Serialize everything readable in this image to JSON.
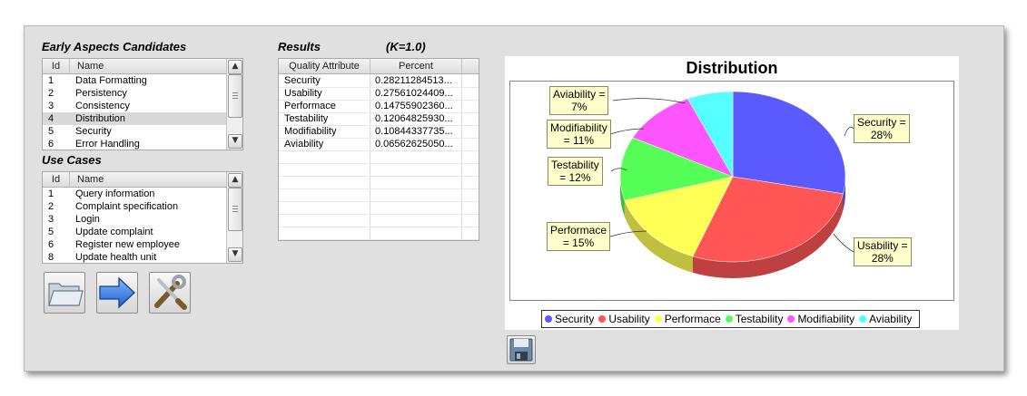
{
  "early_aspects": {
    "title": "Early Aspects Candidates",
    "columns": [
      "Id",
      "Name"
    ],
    "rows": [
      {
        "id": "1",
        "name": "Data Formatting"
      },
      {
        "id": "2",
        "name": "Persistency"
      },
      {
        "id": "3",
        "name": "Consistency"
      },
      {
        "id": "4",
        "name": "Distribution"
      },
      {
        "id": "5",
        "name": "Security"
      },
      {
        "id": "6",
        "name": "Error Handling"
      }
    ],
    "selected_index": 3
  },
  "use_cases": {
    "title": "Use Cases",
    "columns": [
      "Id",
      "Name"
    ],
    "rows": [
      {
        "id": "1",
        "name": "Query information"
      },
      {
        "id": "2",
        "name": "Complaint specification"
      },
      {
        "id": "3",
        "name": "Login"
      },
      {
        "id": "5",
        "name": "Update complaint"
      },
      {
        "id": "6",
        "name": "Register new employee"
      },
      {
        "id": "8",
        "name": "Update health unit"
      }
    ]
  },
  "results": {
    "title": "Results",
    "k_label": "(K=1.0)",
    "columns": [
      "Quality Attribute",
      "Percent"
    ],
    "rows": [
      {
        "attr": "Security",
        "percent": "0.28211284513..."
      },
      {
        "attr": "Usability",
        "percent": "0.27561024409..."
      },
      {
        "attr": "Performace",
        "percent": "0.14755902360..."
      },
      {
        "attr": "Testability",
        "percent": "0.12064825930..."
      },
      {
        "attr": "Modifiability",
        "percent": "0.10844337735..."
      },
      {
        "attr": "Aviability",
        "percent": "0.06562625050..."
      }
    ]
  },
  "toolbar": {
    "open_icon": "folder-open-icon",
    "run_icon": "arrow-right-icon",
    "settings_icon": "tools-icon",
    "save_icon": "floppy-disk-icon"
  },
  "chart_data": {
    "type": "pie",
    "title": "Distribution",
    "slices": [
      {
        "name": "Security",
        "value": 0.28211284513,
        "label": "Security =",
        "pct": "28%",
        "color": "#5a5aff"
      },
      {
        "name": "Usability",
        "value": 0.27561024409,
        "label": "Usability =",
        "pct": "28%",
        "color": "#ff5555"
      },
      {
        "name": "Performace",
        "value": 0.1475590236,
        "label": "Performace",
        "pct": "= 15%",
        "color": "#ffff55"
      },
      {
        "name": "Testability",
        "value": 0.1206482593,
        "label": "Testability",
        "pct": "= 12%",
        "color": "#55ff55"
      },
      {
        "name": "Modifiability",
        "value": 0.10844337735,
        "label": "Modifiability",
        "pct": "= 11%",
        "color": "#ff55ff"
      },
      {
        "name": "Aviability",
        "value": 0.0656262505,
        "label": "Aviability =",
        "pct": "7%",
        "color": "#55ffff"
      }
    ],
    "legend": [
      "Security",
      "Usability",
      "Performace",
      "Testability",
      "Modifiability",
      "Aviability"
    ],
    "legend_position": "bottom"
  }
}
